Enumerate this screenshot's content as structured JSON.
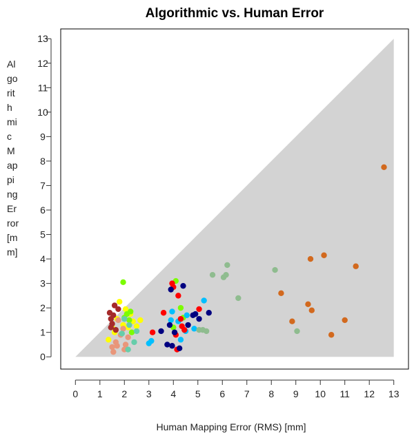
{
  "chart_data": {
    "type": "scatter",
    "title": "Algorithmic vs. Human Error",
    "xlabel": "Human Mapping Error (RMS) [mm]",
    "ylabel_lines": [
      "Al",
      "go",
      "rit",
      "h",
      "mi",
      "c",
      "M",
      "ap",
      "pi",
      "ng",
      "Er",
      "ror",
      "[m",
      "m]"
    ],
    "xlim": [
      -0.6,
      13.6
    ],
    "ylim": [
      -0.5,
      13.4
    ],
    "xticks": [
      "0",
      "1",
      "2",
      "3",
      "4",
      "5",
      "6",
      "7",
      "8",
      "9",
      "10",
      "11",
      "12",
      "13"
    ],
    "yticks": [
      "0",
      "1",
      "2",
      "3",
      "4",
      "5",
      "6",
      "7",
      "8",
      "9",
      "10",
      "11",
      "12",
      "13"
    ],
    "shaded_region": {
      "vertices": [
        [
          0,
          0
        ],
        [
          13,
          13
        ],
        [
          13,
          0
        ]
      ],
      "color": "#d3d3d3"
    },
    "grid": false,
    "series": [
      {
        "color": "#ffff00",
        "points": [
          [
            1.35,
            0.7
          ],
          [
            1.5,
            1.2
          ],
          [
            1.7,
            1.55
          ],
          [
            1.8,
            2.25
          ],
          [
            1.95,
            1.3
          ],
          [
            2.05,
            1.95
          ],
          [
            2.15,
            1.2
          ],
          [
            2.25,
            1.75
          ],
          [
            2.35,
            1.45
          ],
          [
            2.5,
            1.25
          ],
          [
            2.65,
            1.5
          ],
          [
            1.6,
            1.0
          ]
        ]
      },
      {
        "color": "#a52a2a",
        "points": [
          [
            1.4,
            1.8
          ],
          [
            1.45,
            1.55
          ],
          [
            1.5,
            1.35
          ],
          [
            1.55,
            1.7
          ],
          [
            1.6,
            2.1
          ],
          [
            1.65,
            1.1
          ],
          [
            1.75,
            1.95
          ],
          [
            1.45,
            1.2
          ]
        ]
      },
      {
        "color": "#e9967a",
        "points": [
          [
            1.5,
            0.4
          ],
          [
            1.55,
            0.2
          ],
          [
            1.65,
            0.6
          ],
          [
            1.75,
            1.5
          ],
          [
            1.85,
            0.9
          ],
          [
            1.95,
            1.15
          ],
          [
            2.05,
            0.5
          ],
          [
            2.15,
            0.8
          ],
          [
            1.7,
            0.45
          ],
          [
            2.0,
            0.3
          ]
        ]
      },
      {
        "color": "#7cfc00",
        "points": [
          [
            1.95,
            3.05
          ],
          [
            2.0,
            1.6
          ],
          [
            2.1,
            1.75
          ],
          [
            2.2,
            1.5
          ],
          [
            2.3,
            1.0
          ],
          [
            2.25,
            1.85
          ],
          [
            4.1,
            3.1
          ],
          [
            4.3,
            2.0
          ],
          [
            4.4,
            1.6
          ],
          [
            4.0,
            1.2
          ]
        ]
      },
      {
        "color": "#66cdaa",
        "points": [
          [
            1.9,
            0.95
          ],
          [
            2.15,
            0.3
          ],
          [
            2.4,
            0.6
          ],
          [
            2.0,
            1.55
          ],
          [
            2.5,
            1.05
          ],
          [
            2.2,
            1.3
          ]
        ]
      },
      {
        "color": "#00bfff",
        "points": [
          [
            3.0,
            0.55
          ],
          [
            3.1,
            0.65
          ],
          [
            3.9,
            1.5
          ],
          [
            3.95,
            1.85
          ],
          [
            4.2,
            1.45
          ],
          [
            4.5,
            1.05
          ],
          [
            4.85,
            1.15
          ],
          [
            5.25,
            2.3
          ],
          [
            4.55,
            1.7
          ],
          [
            4.3,
            0.7
          ]
        ]
      },
      {
        "color": "#ff0000",
        "points": [
          [
            3.15,
            1.0
          ],
          [
            3.6,
            1.8
          ],
          [
            3.95,
            3.0
          ],
          [
            4.1,
            0.9
          ],
          [
            4.2,
            2.5
          ],
          [
            4.3,
            1.55
          ],
          [
            4.15,
            0.3
          ],
          [
            4.45,
            1.1
          ],
          [
            4.35,
            1.25
          ],
          [
            5.05,
            1.95
          ],
          [
            4.0,
            2.85
          ]
        ]
      },
      {
        "color": "#000080",
        "points": [
          [
            3.5,
            1.05
          ],
          [
            3.75,
            0.5
          ],
          [
            3.85,
            1.3
          ],
          [
            3.9,
            2.75
          ],
          [
            3.95,
            0.45
          ],
          [
            4.05,
            1.0
          ],
          [
            4.25,
            0.35
          ],
          [
            4.4,
            2.9
          ],
          [
            4.8,
            1.7
          ],
          [
            4.9,
            1.75
          ],
          [
            5.05,
            1.55
          ],
          [
            5.45,
            1.8
          ],
          [
            4.6,
            1.3
          ]
        ]
      },
      {
        "color": "#8fbc8f",
        "points": [
          [
            5.05,
            1.1
          ],
          [
            5.2,
            1.1
          ],
          [
            5.35,
            1.05
          ],
          [
            5.6,
            3.35
          ],
          [
            6.05,
            3.25
          ],
          [
            6.15,
            3.35
          ],
          [
            6.2,
            3.75
          ],
          [
            6.65,
            2.4
          ],
          [
            8.15,
            3.55
          ],
          [
            9.05,
            1.05
          ]
        ]
      },
      {
        "color": "#d2691e",
        "points": [
          [
            8.4,
            2.6
          ],
          [
            8.85,
            1.45
          ],
          [
            9.5,
            2.15
          ],
          [
            9.6,
            4.0
          ],
          [
            9.65,
            1.9
          ],
          [
            10.15,
            4.15
          ],
          [
            10.45,
            0.9
          ],
          [
            11.0,
            1.5
          ],
          [
            11.45,
            3.7
          ],
          [
            12.6,
            7.75
          ]
        ]
      }
    ]
  }
}
